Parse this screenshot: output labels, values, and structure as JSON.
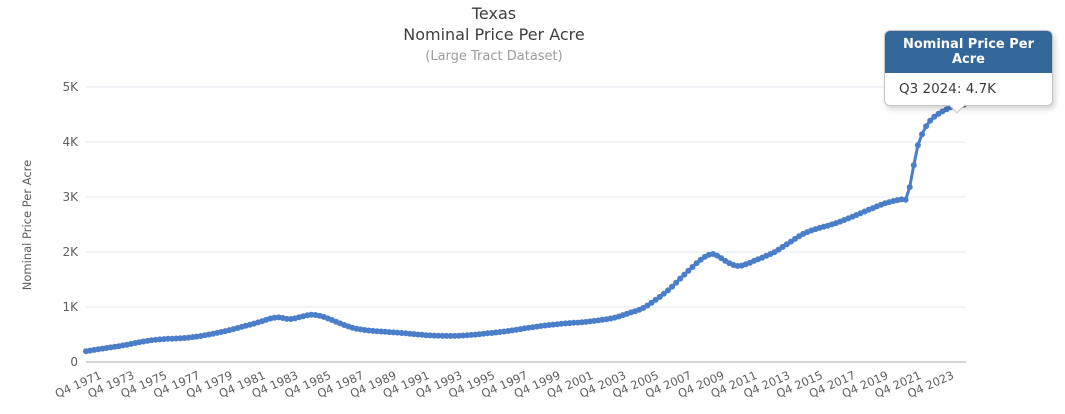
{
  "title": {
    "line1": "Texas",
    "line2": "Nominal Price Per Acre"
  },
  "subtitle": "(Large Tract Dataset)",
  "tooltip": {
    "header": "Nominal Price Per Acre",
    "body": "Q3 2024: 4.7K"
  },
  "colors": {
    "line": "#4a7ec8",
    "grid": "#e4e9f2",
    "axis_line": "#a9a9a9",
    "axis_text": "#5f5f5f",
    "title_text": "#3f3f3f",
    "subtitle_text": "#9c9c9c",
    "tooltip_header_bg": "#336699",
    "last_marker_ring": "#51606b"
  },
  "chart_data": {
    "type": "line",
    "title": "Texas Nominal Price Per Acre",
    "subtitle": "(Large Tract Dataset)",
    "xlabel": "",
    "ylabel": "Nominal Price Per Acre",
    "x_start": "Q1 1971",
    "x_end": "Q3 2024",
    "frequency": "quarterly",
    "ylim": [
      0,
      5000
    ],
    "grid": "horizontal-only",
    "legend": "none",
    "y_ticks": [
      "0",
      "1K",
      "2K",
      "3K",
      "4K",
      "5K"
    ],
    "x_tick_labels": [
      "Q4 1971",
      "Q4 1973",
      "Q4 1975",
      "Q4 1977",
      "Q4 1979",
      "Q4 1981",
      "Q4 1983",
      "Q4 1985",
      "Q4 1987",
      "Q4 1989",
      "Q4 1991",
      "Q4 1993",
      "Q4 1995",
      "Q4 1997",
      "Q4 1999",
      "Q4 2001",
      "Q4 2003",
      "Q4 2005",
      "Q4 2007",
      "Q4 2009",
      "Q4 2011",
      "Q4 2013",
      "Q4 2015",
      "Q4 2017",
      "Q4 2019",
      "Q4 2021",
      "Q4 2023"
    ],
    "x_tick_first_index": 3,
    "x_tick_step": 8,
    "highlight_last_point": {
      "label": "Q3 2024",
      "value": 4720,
      "display": "4.7K"
    },
    "series": [
      {
        "name": "Nominal Price Per Acre",
        "values": [
          195,
          208,
          220,
          232,
          243,
          254,
          265,
          276,
          288,
          301,
          315,
          330,
          345,
          359,
          372,
          384,
          394,
          403,
          411,
          417,
          421,
          424,
          427,
          431,
          436,
          443,
          452,
          462,
          473,
          486,
          500,
          514,
          529,
          545,
          562,
          580,
          599,
          619,
          639,
          659,
          679,
          699,
          720,
          744,
          769,
          791,
          806,
          811,
          800,
          784,
          781,
          793,
          812,
          833,
          849,
          858,
          854,
          841,
          820,
          793,
          763,
          732,
          702,
          673,
          647,
          624,
          606,
          592,
          581,
          572,
          565,
          559,
          554,
          549,
          544,
          539,
          534,
          528,
          521,
          514,
          507,
          500,
          494,
          488,
          484,
          480,
          477,
          475,
          474,
          474,
          475,
          477,
          481,
          486,
          492,
          499,
          506,
          513,
          521,
          528,
          536,
          545,
          554,
          564,
          575,
          587,
          599,
          611,
          622,
          633,
          644,
          654,
          663,
          672,
          680,
          688,
          695,
          701,
          707,
          712,
          717,
          723,
          730,
          738,
          747,
          757,
          768,
          779,
          791,
          808,
          828,
          852,
          878,
          901,
          924,
          951,
          984,
          1028,
          1078,
          1130,
          1184,
          1240,
          1301,
          1369,
          1440,
          1517,
          1590,
          1660,
          1728,
          1799,
          1858,
          1910,
          1949,
          1963,
          1934,
          1889,
          1839,
          1795,
          1763,
          1746,
          1753,
          1776,
          1806,
          1838,
          1868,
          1899,
          1932,
          1964,
          1998,
          2044,
          2092,
          2140,
          2189,
          2238,
          2287,
          2329,
          2362,
          2391,
          2416,
          2438,
          2459,
          2479,
          2501,
          2526,
          2553,
          2581,
          2611,
          2641,
          2672,
          2704,
          2737,
          2769,
          2799,
          2829,
          2858,
          2886,
          2908,
          2927,
          2944,
          2957,
          2949,
          3180,
          3580,
          3940,
          4140,
          4287,
          4390,
          4459,
          4510,
          4556,
          4596,
          4632,
          4665,
          4696,
          4720
        ]
      }
    ]
  }
}
